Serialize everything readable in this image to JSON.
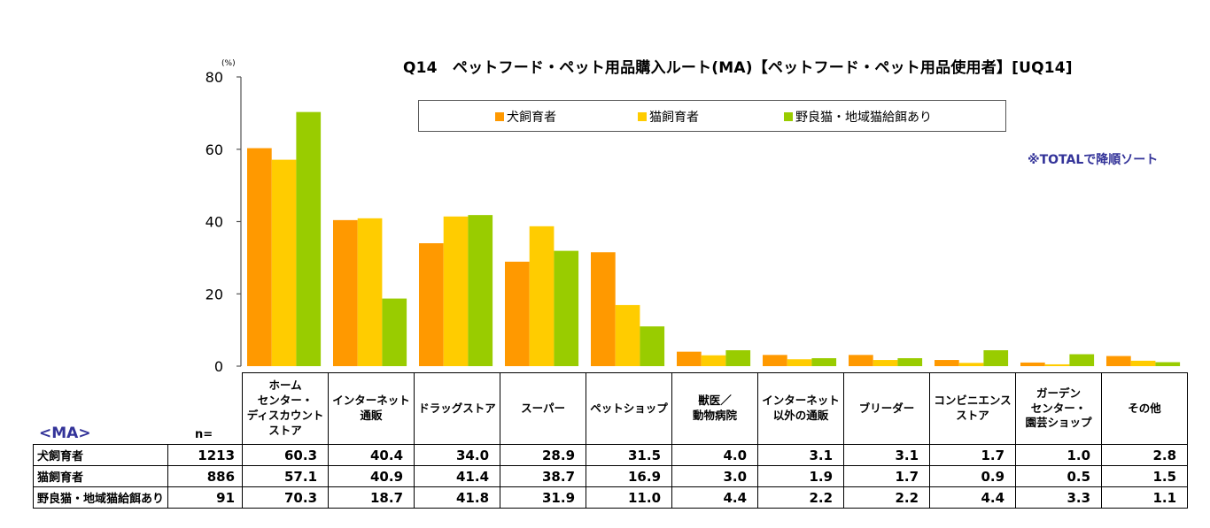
{
  "title": "Q14　ペットフード・ペット用品購入ルート(MA)【ペットフード・ペット用品使用者】[UQ14]",
  "note": "※TOTALで降順ソート",
  "ma_label": "<MA>",
  "n_label": "n=",
  "colors": {
    "dog": "#FF9900",
    "cat": "#FFCC00",
    "stray": "#99CC00",
    "note": "#333399"
  },
  "chart_data": {
    "type": "bar",
    "title": "Q14　ペットフード・ペット用品購入ルート(MA)【ペットフード・ペット用品使用者】[UQ14]",
    "ylabel": "(%)",
    "xlabel": "",
    "ylim": [
      0,
      80
    ],
    "yticks": [
      0,
      20,
      40,
      60,
      80
    ],
    "grid": false,
    "legend_position": "top",
    "categories": [
      "ホーム\nセンター・\nディスカウント\nストア",
      "インターネット\n通販",
      "ドラッグストア",
      "スーパー",
      "ペットショップ",
      "獣医／\n動物病院",
      "インターネット\n以外の通販",
      "ブリーダー",
      "コンビニエンス\nストア",
      "ガーデン\nセンター・\n園芸ショップ",
      "その他"
    ],
    "series": [
      {
        "name": "犬飼育者",
        "n": "1213",
        "color": "#FF9900",
        "values": [
          60.3,
          40.4,
          34.0,
          28.9,
          31.5,
          4.0,
          3.1,
          3.1,
          1.7,
          1.0,
          2.8
        ]
      },
      {
        "name": "猫飼育者",
        "n": "886",
        "color": "#FFCC00",
        "values": [
          57.1,
          40.9,
          41.4,
          38.7,
          16.9,
          3.0,
          1.9,
          1.7,
          0.9,
          0.5,
          1.5
        ]
      },
      {
        "name": "野良猫・地域猫給餌あり",
        "n": "91",
        "color": "#99CC00",
        "values": [
          70.3,
          18.7,
          41.8,
          31.9,
          11.0,
          4.4,
          2.2,
          2.2,
          4.4,
          3.3,
          1.1
        ]
      }
    ]
  }
}
